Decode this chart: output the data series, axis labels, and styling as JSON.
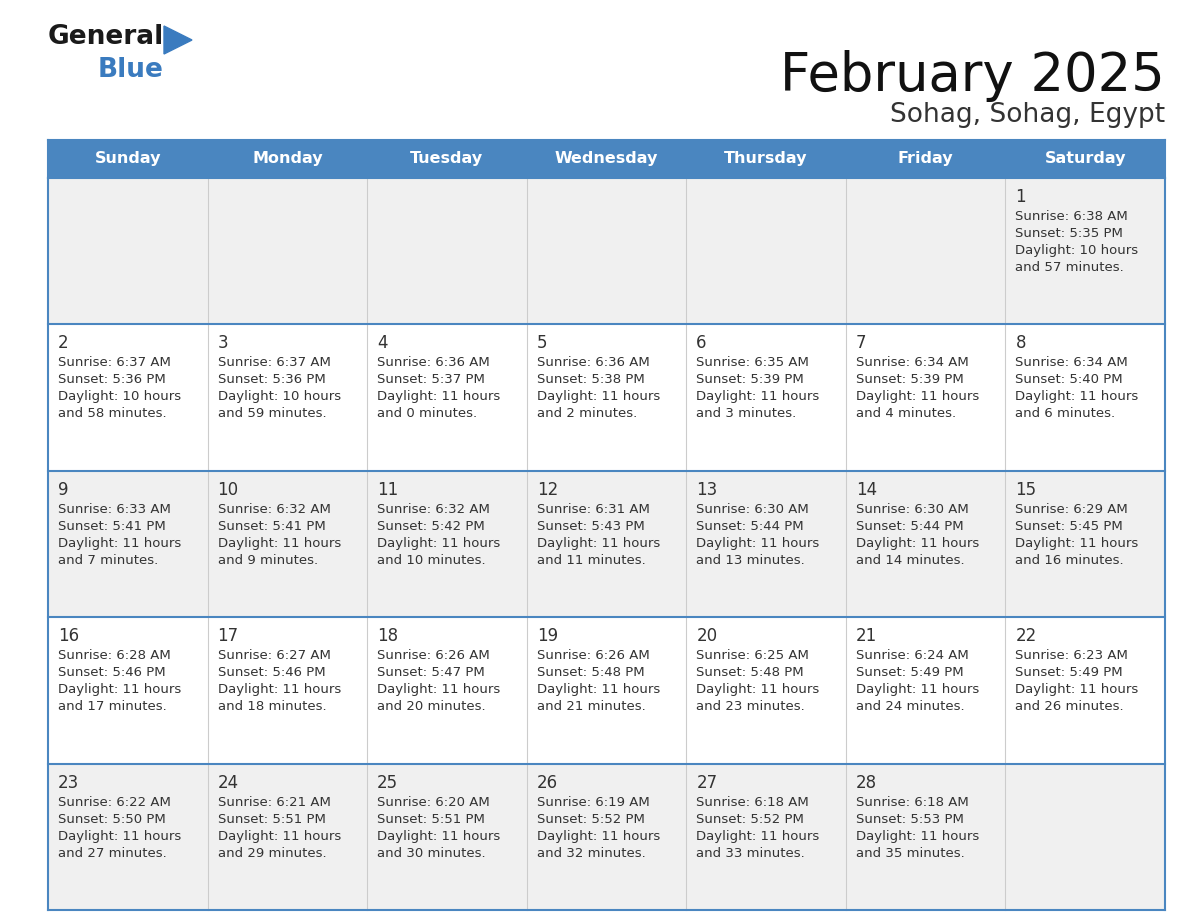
{
  "title": "February 2025",
  "subtitle": "Sohag, Sohag, Egypt",
  "header_bg": "#4a86c0",
  "header_text_color": "#ffffff",
  "cell_bg_odd": "#f0f0f0",
  "cell_bg_even": "#ffffff",
  "border_color": "#4a86c0",
  "grid_color": "#cccccc",
  "text_color": "#333333",
  "day_num_color": "#333333",
  "days_of_week": [
    "Sunday",
    "Monday",
    "Tuesday",
    "Wednesday",
    "Thursday",
    "Friday",
    "Saturday"
  ],
  "logo_general_color": "#1a1a1a",
  "logo_blue_color": "#3a7bbf",
  "calendar_data": [
    [
      null,
      null,
      null,
      null,
      null,
      null,
      {
        "day": "1",
        "sunrise": "6:38 AM",
        "sunset": "5:35 PM",
        "daylight_h": "10 hours",
        "daylight_m": "and 57 minutes."
      }
    ],
    [
      {
        "day": "2",
        "sunrise": "6:37 AM",
        "sunset": "5:36 PM",
        "daylight_h": "10 hours",
        "daylight_m": "and 58 minutes."
      },
      {
        "day": "3",
        "sunrise": "6:37 AM",
        "sunset": "5:36 PM",
        "daylight_h": "10 hours",
        "daylight_m": "and 59 minutes."
      },
      {
        "day": "4",
        "sunrise": "6:36 AM",
        "sunset": "5:37 PM",
        "daylight_h": "11 hours",
        "daylight_m": "and 0 minutes."
      },
      {
        "day": "5",
        "sunrise": "6:36 AM",
        "sunset": "5:38 PM",
        "daylight_h": "11 hours",
        "daylight_m": "and 2 minutes."
      },
      {
        "day": "6",
        "sunrise": "6:35 AM",
        "sunset": "5:39 PM",
        "daylight_h": "11 hours",
        "daylight_m": "and 3 minutes."
      },
      {
        "day": "7",
        "sunrise": "6:34 AM",
        "sunset": "5:39 PM",
        "daylight_h": "11 hours",
        "daylight_m": "and 4 minutes."
      },
      {
        "day": "8",
        "sunrise": "6:34 AM",
        "sunset": "5:40 PM",
        "daylight_h": "11 hours",
        "daylight_m": "and 6 minutes."
      }
    ],
    [
      {
        "day": "9",
        "sunrise": "6:33 AM",
        "sunset": "5:41 PM",
        "daylight_h": "11 hours",
        "daylight_m": "and 7 minutes."
      },
      {
        "day": "10",
        "sunrise": "6:32 AM",
        "sunset": "5:41 PM",
        "daylight_h": "11 hours",
        "daylight_m": "and 9 minutes."
      },
      {
        "day": "11",
        "sunrise": "6:32 AM",
        "sunset": "5:42 PM",
        "daylight_h": "11 hours",
        "daylight_m": "and 10 minutes."
      },
      {
        "day": "12",
        "sunrise": "6:31 AM",
        "sunset": "5:43 PM",
        "daylight_h": "11 hours",
        "daylight_m": "and 11 minutes."
      },
      {
        "day": "13",
        "sunrise": "6:30 AM",
        "sunset": "5:44 PM",
        "daylight_h": "11 hours",
        "daylight_m": "and 13 minutes."
      },
      {
        "day": "14",
        "sunrise": "6:30 AM",
        "sunset": "5:44 PM",
        "daylight_h": "11 hours",
        "daylight_m": "and 14 minutes."
      },
      {
        "day": "15",
        "sunrise": "6:29 AM",
        "sunset": "5:45 PM",
        "daylight_h": "11 hours",
        "daylight_m": "and 16 minutes."
      }
    ],
    [
      {
        "day": "16",
        "sunrise": "6:28 AM",
        "sunset": "5:46 PM",
        "daylight_h": "11 hours",
        "daylight_m": "and 17 minutes."
      },
      {
        "day": "17",
        "sunrise": "6:27 AM",
        "sunset": "5:46 PM",
        "daylight_h": "11 hours",
        "daylight_m": "and 18 minutes."
      },
      {
        "day": "18",
        "sunrise": "6:26 AM",
        "sunset": "5:47 PM",
        "daylight_h": "11 hours",
        "daylight_m": "and 20 minutes."
      },
      {
        "day": "19",
        "sunrise": "6:26 AM",
        "sunset": "5:48 PM",
        "daylight_h": "11 hours",
        "daylight_m": "and 21 minutes."
      },
      {
        "day": "20",
        "sunrise": "6:25 AM",
        "sunset": "5:48 PM",
        "daylight_h": "11 hours",
        "daylight_m": "and 23 minutes."
      },
      {
        "day": "21",
        "sunrise": "6:24 AM",
        "sunset": "5:49 PM",
        "daylight_h": "11 hours",
        "daylight_m": "and 24 minutes."
      },
      {
        "day": "22",
        "sunrise": "6:23 AM",
        "sunset": "5:49 PM",
        "daylight_h": "11 hours",
        "daylight_m": "and 26 minutes."
      }
    ],
    [
      {
        "day": "23",
        "sunrise": "6:22 AM",
        "sunset": "5:50 PM",
        "daylight_h": "11 hours",
        "daylight_m": "and 27 minutes."
      },
      {
        "day": "24",
        "sunrise": "6:21 AM",
        "sunset": "5:51 PM",
        "daylight_h": "11 hours",
        "daylight_m": "and 29 minutes."
      },
      {
        "day": "25",
        "sunrise": "6:20 AM",
        "sunset": "5:51 PM",
        "daylight_h": "11 hours",
        "daylight_m": "and 30 minutes."
      },
      {
        "day": "26",
        "sunrise": "6:19 AM",
        "sunset": "5:52 PM",
        "daylight_h": "11 hours",
        "daylight_m": "and 32 minutes."
      },
      {
        "day": "27",
        "sunrise": "6:18 AM",
        "sunset": "5:52 PM",
        "daylight_h": "11 hours",
        "daylight_m": "and 33 minutes."
      },
      {
        "day": "28",
        "sunrise": "6:18 AM",
        "sunset": "5:53 PM",
        "daylight_h": "11 hours",
        "daylight_m": "and 35 minutes."
      },
      null
    ]
  ]
}
